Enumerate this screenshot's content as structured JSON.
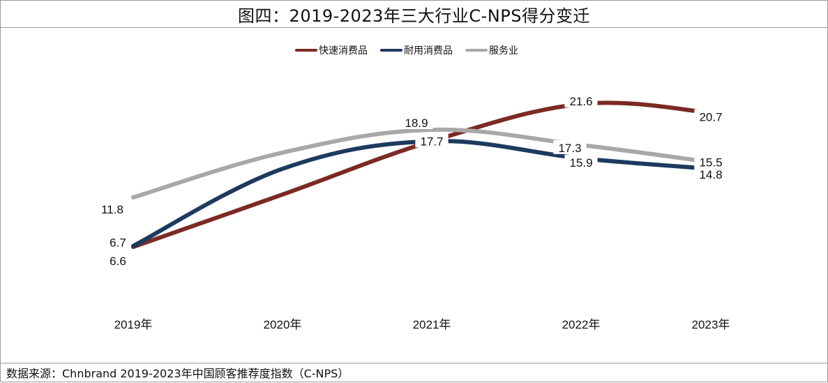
{
  "title": "图四：2019-2023年三大行业C-NPS得分变迁",
  "source": "数据来源：Chnbrand 2019-2023年中国顾客推荐度指数（C-NPS）",
  "chart_data": {
    "type": "line",
    "categories": [
      "2019年",
      "2020年",
      "2021年",
      "2022年",
      "2023年"
    ],
    "legend_position": "top-center",
    "grid": false,
    "ylim": [
      0,
      30
    ],
    "series": [
      {
        "name": "快速消费品",
        "color": "#7b2a24",
        "values": [
          6.6,
          12.1,
          17.7,
          21.6,
          20.7
        ],
        "labels": [
          "6.6",
          null,
          null,
          "21.6",
          "20.7"
        ]
      },
      {
        "name": "耐用消费品",
        "color": "#1d3a5f",
        "values": [
          6.7,
          14.8,
          17.7,
          15.9,
          14.8
        ],
        "labels": [
          "6.7",
          null,
          "17.7",
          "15.9",
          "14.8"
        ]
      },
      {
        "name": "服务业",
        "color": "#a8a8a8",
        "values": [
          11.8,
          16.5,
          18.9,
          17.3,
          15.5
        ],
        "labels": [
          "11.8",
          null,
          "18.9",
          "17.3",
          "15.5"
        ]
      }
    ]
  }
}
